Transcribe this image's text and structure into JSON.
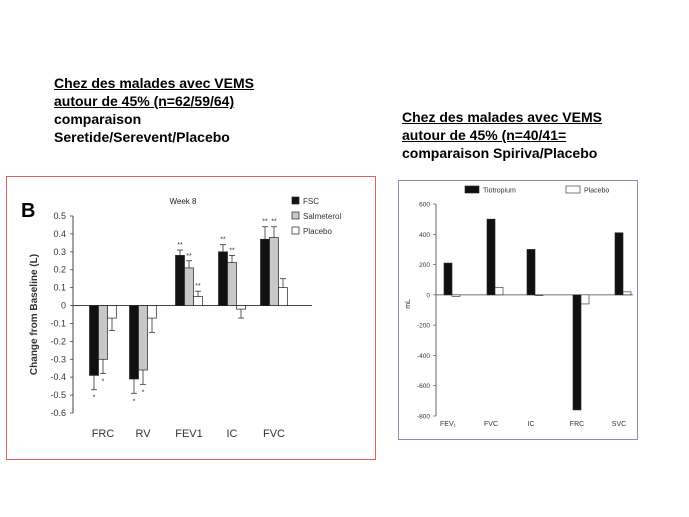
{
  "captions": {
    "left": {
      "line1": "Chez des malades avec VEMS",
      "line2": "autour de 45%  (n=62/59/64)",
      "line3": "comparaison",
      "line4": "Seretide/Serevent/Placebo"
    },
    "right": {
      "line1": "Chez des malades avec VEMS",
      "line2": "autour de 45%  (n=40/41=",
      "line3": "comparaison Spiriva/Placebo"
    }
  },
  "chart_data": [
    {
      "type": "bar",
      "panel_label": "B",
      "title": "Week 8",
      "ylabel": "Change from Baseline (L)",
      "xlabel": "",
      "ylim": [
        -0.6,
        0.5
      ],
      "yticks": [
        "0.5",
        "0.4",
        "0.3",
        "0.2",
        "0.1",
        "0",
        "-0.1",
        "-0.2",
        "-0.3",
        "-0.4",
        "-0.5",
        "-0.6"
      ],
      "categories": [
        "FRC",
        "RV",
        "FEV1",
        "IC",
        "FVC"
      ],
      "series": [
        {
          "name": "FSC",
          "values": [
            -0.39,
            -0.41,
            0.28,
            0.3,
            0.37
          ],
          "error": [
            0.08,
            0.08,
            0.03,
            0.04,
            0.07
          ],
          "stars": [
            "*",
            "*",
            "**",
            "**",
            "**"
          ]
        },
        {
          "name": "Salmeterol",
          "values": [
            -0.3,
            -0.36,
            0.21,
            0.24,
            0.38
          ],
          "error": [
            0.08,
            0.08,
            0.04,
            0.04,
            0.06
          ],
          "stars": [
            "*",
            "*",
            "**",
            "**",
            "**"
          ]
        },
        {
          "name": "Placebo",
          "values": [
            -0.07,
            -0.07,
            0.05,
            -0.02,
            0.1
          ],
          "error": [
            0.07,
            0.08,
            0.03,
            0.05,
            0.05
          ],
          "stars": [
            "",
            "",
            "**",
            "",
            ""
          ]
        }
      ],
      "legend_position": "top-right",
      "grid": false,
      "colors": {
        "FSC": "#111111",
        "Salmeterol": "#c8c8c8",
        "Placebo": "#ffffff"
      }
    },
    {
      "type": "bar",
      "title": "",
      "ylabel": "mL",
      "xlabel": "",
      "ylim": [
        -800,
        600
      ],
      "yticks": [
        "600",
        "400",
        "200",
        "0",
        "-200",
        "-400",
        "-600",
        "-800"
      ],
      "categories": [
        "FEV₁",
        "FVC",
        "IC",
        "FRC",
        "SVC"
      ],
      "series": [
        {
          "name": "Tiotropium",
          "values": [
            210,
            500,
            300,
            -760,
            410
          ]
        },
        {
          "name": "Placebo",
          "values": [
            -10,
            50,
            0,
            -60,
            20
          ]
        }
      ],
      "legend_position": "top",
      "grid": false,
      "colors": {
        "Tiotropium": "#111111",
        "Placebo": "#ffffff"
      }
    }
  ]
}
